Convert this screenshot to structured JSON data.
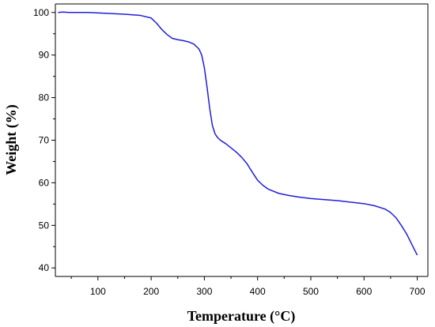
{
  "chart_data": {
    "type": "line",
    "title": "",
    "xlabel": "Temperature (°C)",
    "ylabel": "Weight (%)",
    "xlim": [
      20,
      720
    ],
    "ylim": [
      38,
      102
    ],
    "xticks": [
      100,
      200,
      300,
      400,
      500,
      600,
      700
    ],
    "yticks": [
      40,
      50,
      60,
      70,
      80,
      90,
      100
    ],
    "grid": false,
    "legend": "none",
    "series": [
      {
        "color": "#1f1fd6",
        "x": [
          25,
          35,
          45,
          60,
          80,
          100,
          150,
          180,
          200,
          210,
          220,
          230,
          240,
          250,
          260,
          270,
          280,
          290,
          295,
          300,
          305,
          310,
          315,
          320,
          325,
          330,
          340,
          350,
          360,
          370,
          380,
          390,
          400,
          410,
          420,
          440,
          460,
          480,
          500,
          550,
          600,
          620,
          640,
          650,
          660,
          670,
          680,
          690,
          700
        ],
        "y": [
          100.0,
          100.1,
          100.0,
          100.0,
          100.0,
          99.9,
          99.6,
          99.3,
          98.7,
          97.5,
          96.0,
          94.8,
          93.9,
          93.6,
          93.4,
          93.1,
          92.6,
          91.4,
          90.0,
          87.0,
          82.5,
          77.5,
          73.5,
          71.5,
          70.6,
          70.0,
          69.2,
          68.2,
          67.2,
          66.0,
          64.5,
          62.5,
          60.6,
          59.4,
          58.5,
          57.5,
          57.0,
          56.6,
          56.3,
          55.8,
          55.1,
          54.6,
          53.8,
          53.0,
          51.8,
          50.0,
          48.0,
          45.5,
          43.0
        ]
      }
    ]
  }
}
